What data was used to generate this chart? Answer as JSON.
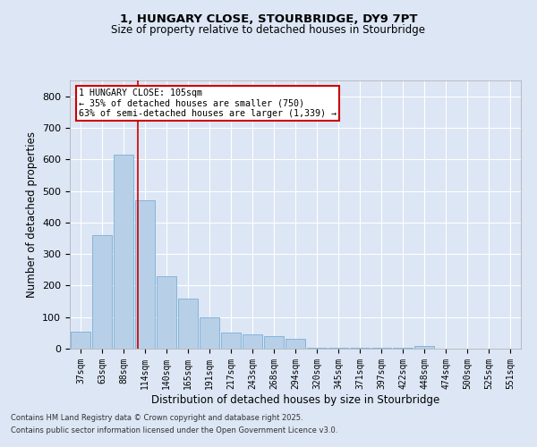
{
  "title1": "1, HUNGARY CLOSE, STOURBRIDGE, DY9 7PT",
  "title2": "Size of property relative to detached houses in Stourbridge",
  "xlabel": "Distribution of detached houses by size in Stourbridge",
  "ylabel": "Number of detached properties",
  "categories": [
    "37sqm",
    "63sqm",
    "88sqm",
    "114sqm",
    "140sqm",
    "165sqm",
    "191sqm",
    "217sqm",
    "243sqm",
    "268sqm",
    "294sqm",
    "320sqm",
    "345sqm",
    "371sqm",
    "397sqm",
    "422sqm",
    "448sqm",
    "474sqm",
    "500sqm",
    "525sqm",
    "551sqm"
  ],
  "values": [
    55,
    360,
    615,
    470,
    230,
    160,
    100,
    50,
    45,
    40,
    30,
    3,
    2,
    2,
    2,
    2,
    8,
    0,
    0,
    0,
    0
  ],
  "bar_color": "#b8cfe8",
  "bar_edge_color": "#7aafd4",
  "background_color": "#dce6f5",
  "plot_bg_color": "#dce6f5",
  "grid_color": "#ffffff",
  "vline_color": "#cc0000",
  "annotation_text": "1 HUNGARY CLOSE: 105sqm\n← 35% of detached houses are smaller (750)\n63% of semi-detached houses are larger (1,339) →",
  "annotation_box_color": "#ffffff",
  "annotation_box_edge": "#cc0000",
  "ylim": [
    0,
    850
  ],
  "yticks": [
    0,
    100,
    200,
    300,
    400,
    500,
    600,
    700,
    800
  ],
  "footer1": "Contains HM Land Registry data © Crown copyright and database right 2025.",
  "footer2": "Contains public sector information licensed under the Open Government Licence v3.0."
}
